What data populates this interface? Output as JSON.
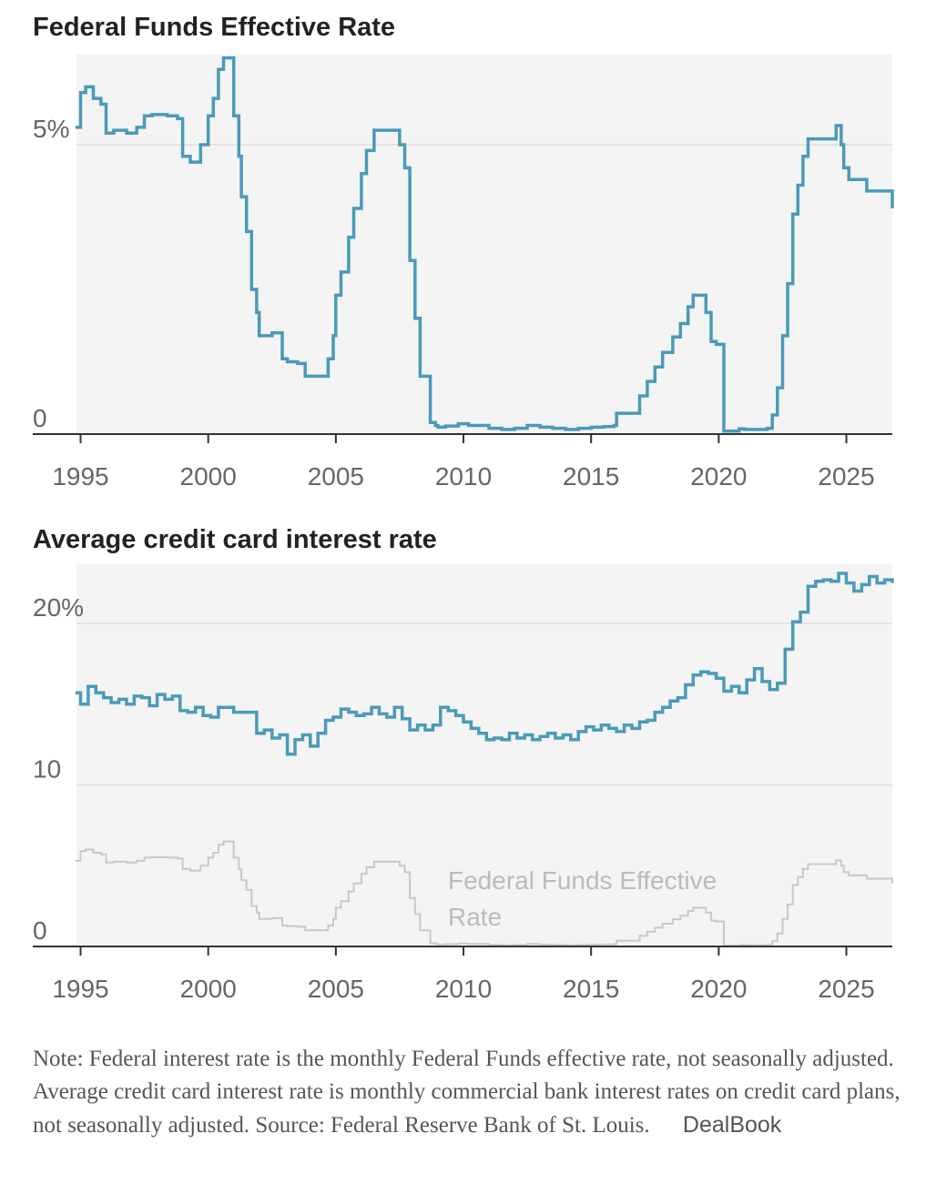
{
  "chart_data": [
    {
      "type": "line",
      "title": "Federal Funds Effective Rate",
      "x_ticks": [
        1995,
        2000,
        2005,
        2010,
        2015,
        2020,
        2025
      ],
      "y_ticks": [
        {
          "value": 0,
          "label": "0"
        },
        {
          "value": 5,
          "label": "5%"
        }
      ],
      "xlim": [
        1995,
        2026.8
      ],
      "ylim": [
        0,
        6.6
      ],
      "grid": true,
      "series": [
        {
          "color": "#4a9ab9",
          "x": [
            1994.8,
            1995.0,
            1995.2,
            1995.5,
            1995.8,
            1996.0,
            1996.3,
            1996.8,
            1997.2,
            1997.5,
            1997.8,
            1998.4,
            1998.8,
            1999.0,
            1999.3,
            1999.7,
            2000.0,
            2000.2,
            2000.4,
            2000.6,
            2000.8,
            2001.0,
            2001.2,
            2001.3,
            2001.5,
            2001.7,
            2001.9,
            2002.0,
            2002.5,
            2002.9,
            2003.1,
            2003.5,
            2003.8,
            2004.0,
            2004.5,
            2004.7,
            2004.9,
            2005.0,
            2005.2,
            2005.5,
            2005.7,
            2006.0,
            2006.2,
            2006.5,
            2007.5,
            2007.7,
            2007.9,
            2008.1,
            2008.3,
            2008.7,
            2008.9,
            2009.0,
            2009.3,
            2009.8,
            2010.2,
            2011.0,
            2011.5,
            2012.0,
            2012.5,
            2013.0,
            2013.5,
            2014.0,
            2014.5,
            2015.0,
            2015.5,
            2015.9,
            2016.0,
            2016.9,
            2017.2,
            2017.5,
            2017.8,
            2018.2,
            2018.5,
            2018.8,
            2019.0,
            2019.5,
            2019.7,
            2019.9,
            2020.1,
            2020.2,
            2020.8,
            2021.0,
            2021.9,
            2022.1,
            2022.3,
            2022.5,
            2022.7,
            2022.9,
            2023.1,
            2023.3,
            2023.5,
            2024.6,
            2024.8,
            2024.9,
            2025.1,
            2025.8,
            2026.0,
            2026.8
          ],
          "y": [
            5.3,
            5.9,
            6.0,
            5.8,
            5.7,
            5.2,
            5.25,
            5.2,
            5.3,
            5.5,
            5.52,
            5.5,
            5.45,
            4.8,
            4.7,
            5.0,
            5.5,
            5.8,
            6.3,
            6.5,
            6.5,
            5.5,
            4.8,
            4.1,
            3.5,
            2.5,
            2.1,
            1.7,
            1.75,
            1.3,
            1.25,
            1.22,
            1.0,
            1.0,
            1.0,
            1.3,
            1.7,
            2.4,
            2.8,
            3.4,
            3.9,
            4.5,
            4.9,
            5.25,
            5.0,
            4.6,
            3.0,
            2.0,
            1.0,
            0.2,
            0.15,
            0.12,
            0.14,
            0.18,
            0.15,
            0.1,
            0.08,
            0.1,
            0.15,
            0.12,
            0.1,
            0.08,
            0.1,
            0.12,
            0.13,
            0.15,
            0.36,
            0.66,
            0.91,
            1.16,
            1.41,
            1.68,
            1.91,
            2.2,
            2.4,
            2.1,
            1.6,
            1.55,
            1.55,
            0.05,
            0.09,
            0.08,
            0.1,
            0.33,
            0.8,
            1.7,
            2.6,
            3.8,
            4.3,
            4.8,
            5.1,
            5.33,
            5.0,
            4.6,
            4.4,
            4.2,
            4.2,
            3.9
          ]
        }
      ]
    },
    {
      "type": "line",
      "title": "Average credit card interest rate",
      "x_ticks": [
        1995,
        2000,
        2005,
        2010,
        2015,
        2020,
        2025
      ],
      "y_ticks": [
        {
          "value": 0,
          "label": "0"
        },
        {
          "value": 10,
          "label": "10"
        },
        {
          "value": 20,
          "label": "20%"
        }
      ],
      "xlim": [
        1995,
        2026.8
      ],
      "ylim": [
        0,
        23.5
      ],
      "grid": true,
      "annotation": "Federal Funds Effective Rate",
      "series": [
        {
          "color": "#4a9ab9",
          "x": [
            1994.8,
            1995.0,
            1995.3,
            1995.6,
            1995.9,
            1996.2,
            1996.5,
            1996.8,
            1997.1,
            1997.4,
            1997.7,
            1998.0,
            1998.3,
            1998.6,
            1998.9,
            1999.2,
            1999.5,
            1999.8,
            2000.1,
            2000.4,
            2000.7,
            2001.0,
            2001.3,
            2001.6,
            2001.9,
            2002.2,
            2002.5,
            2002.8,
            2003.1,
            2003.4,
            2003.7,
            2004.0,
            2004.3,
            2004.6,
            2004.9,
            2005.2,
            2005.5,
            2005.8,
            2006.1,
            2006.4,
            2006.7,
            2007.0,
            2007.3,
            2007.6,
            2007.9,
            2008.2,
            2008.5,
            2008.8,
            2009.1,
            2009.4,
            2009.7,
            2010.0,
            2010.3,
            2010.6,
            2010.9,
            2011.2,
            2011.5,
            2011.8,
            2012.1,
            2012.4,
            2012.7,
            2013.0,
            2013.3,
            2013.6,
            2013.9,
            2014.2,
            2014.5,
            2014.8,
            2015.1,
            2015.4,
            2015.7,
            2016.0,
            2016.3,
            2016.6,
            2016.9,
            2017.2,
            2017.5,
            2017.8,
            2018.1,
            2018.4,
            2018.7,
            2019.0,
            2019.3,
            2019.6,
            2019.9,
            2020.2,
            2020.5,
            2020.8,
            2021.1,
            2021.4,
            2021.7,
            2022.0,
            2022.3,
            2022.6,
            2022.9,
            2023.2,
            2023.5,
            2023.8,
            2024.1,
            2024.4,
            2024.7,
            2025.0,
            2025.3,
            2025.6,
            2025.9,
            2026.2,
            2026.5,
            2026.8
          ],
          "y": [
            15.7,
            15.0,
            16.1,
            15.7,
            15.4,
            15.1,
            15.3,
            15.0,
            15.5,
            15.4,
            14.9,
            15.6,
            15.3,
            15.5,
            14.6,
            14.5,
            14.8,
            14.3,
            14.2,
            14.8,
            14.8,
            14.5,
            14.5,
            14.5,
            13.2,
            13.4,
            12.9,
            13.1,
            11.9,
            12.8,
            13.1,
            12.4,
            13.2,
            14.0,
            14.2,
            14.7,
            14.5,
            14.3,
            14.4,
            14.8,
            14.4,
            14.2,
            14.8,
            14.1,
            13.4,
            13.7,
            13.4,
            13.7,
            14.8,
            14.6,
            14.3,
            13.9,
            13.5,
            13.2,
            12.8,
            12.9,
            12.8,
            13.2,
            12.9,
            13.1,
            12.8,
            13.0,
            13.2,
            12.9,
            13.1,
            12.8,
            13.3,
            13.6,
            13.4,
            13.7,
            13.5,
            13.3,
            13.7,
            13.5,
            13.9,
            14.0,
            14.5,
            14.8,
            15.2,
            15.4,
            16.2,
            16.8,
            17.0,
            16.9,
            16.6,
            15.8,
            16.1,
            15.7,
            16.5,
            17.2,
            16.4,
            15.9,
            16.3,
            18.4,
            20.1,
            20.7,
            22.3,
            22.6,
            22.7,
            22.6,
            23.1,
            22.5,
            22.0,
            22.4,
            22.9,
            22.5,
            22.7,
            22.5
          ]
        },
        {
          "name": "Federal Funds Effective Rate",
          "color": "#c8c8c8",
          "x": [
            1994.8,
            1995.0,
            1995.2,
            1995.5,
            1995.8,
            1996.0,
            1996.3,
            1996.8,
            1997.2,
            1997.5,
            1997.8,
            1998.4,
            1998.8,
            1999.0,
            1999.3,
            1999.7,
            2000.0,
            2000.2,
            2000.4,
            2000.6,
            2000.8,
            2001.0,
            2001.2,
            2001.3,
            2001.5,
            2001.7,
            2001.9,
            2002.0,
            2002.5,
            2002.9,
            2003.1,
            2003.5,
            2003.8,
            2004.0,
            2004.5,
            2004.7,
            2004.9,
            2005.0,
            2005.2,
            2005.5,
            2005.7,
            2006.0,
            2006.2,
            2006.5,
            2007.5,
            2007.7,
            2007.9,
            2008.1,
            2008.3,
            2008.7,
            2008.9,
            2009.0,
            2009.3,
            2009.8,
            2010.2,
            2011.0,
            2011.5,
            2012.0,
            2012.5,
            2013.0,
            2013.5,
            2014.0,
            2014.5,
            2015.0,
            2015.5,
            2015.9,
            2016.0,
            2016.9,
            2017.2,
            2017.5,
            2017.8,
            2018.2,
            2018.5,
            2018.8,
            2019.0,
            2019.5,
            2019.7,
            2019.9,
            2020.1,
            2020.2,
            2020.8,
            2021.0,
            2021.9,
            2022.1,
            2022.3,
            2022.5,
            2022.7,
            2022.9,
            2023.1,
            2023.3,
            2023.5,
            2024.6,
            2024.8,
            2024.9,
            2025.1,
            2025.8,
            2026.0,
            2026.8
          ],
          "y": [
            5.3,
            5.9,
            6.0,
            5.8,
            5.7,
            5.2,
            5.25,
            5.2,
            5.3,
            5.5,
            5.52,
            5.5,
            5.45,
            4.8,
            4.7,
            5.0,
            5.5,
            5.8,
            6.3,
            6.5,
            6.5,
            5.5,
            4.8,
            4.1,
            3.5,
            2.5,
            2.1,
            1.7,
            1.75,
            1.3,
            1.25,
            1.22,
            1.0,
            1.0,
            1.0,
            1.3,
            1.7,
            2.4,
            2.8,
            3.4,
            3.9,
            4.5,
            4.9,
            5.25,
            5.0,
            4.6,
            3.0,
            2.0,
            1.0,
            0.2,
            0.15,
            0.12,
            0.14,
            0.18,
            0.15,
            0.1,
            0.08,
            0.1,
            0.15,
            0.12,
            0.1,
            0.08,
            0.1,
            0.12,
            0.13,
            0.15,
            0.36,
            0.66,
            0.91,
            1.16,
            1.41,
            1.68,
            1.91,
            2.2,
            2.4,
            2.1,
            1.6,
            1.55,
            1.55,
            0.05,
            0.09,
            0.08,
            0.1,
            0.33,
            0.8,
            1.7,
            2.6,
            3.8,
            4.3,
            4.8,
            5.1,
            5.33,
            5.0,
            4.6,
            4.4,
            4.2,
            4.2,
            3.9
          ]
        }
      ]
    }
  ],
  "note": {
    "text": "Note: Federal interest rate is the monthly Federal Funds effective rate, not seasonally adjusted. Average credit card interest rate is monthly commercial bank interest rates on credit card plans, not seasonally adjusted.",
    "source": "Source: Federal Reserve Bank of St. Louis.",
    "brand": "DealBook"
  },
  "colors": {
    "line": "#4a9ab9",
    "reference_line": "#c8c8c8",
    "fill": "#f4f4f4",
    "grid": "#dddddd",
    "axis": "#333333"
  }
}
